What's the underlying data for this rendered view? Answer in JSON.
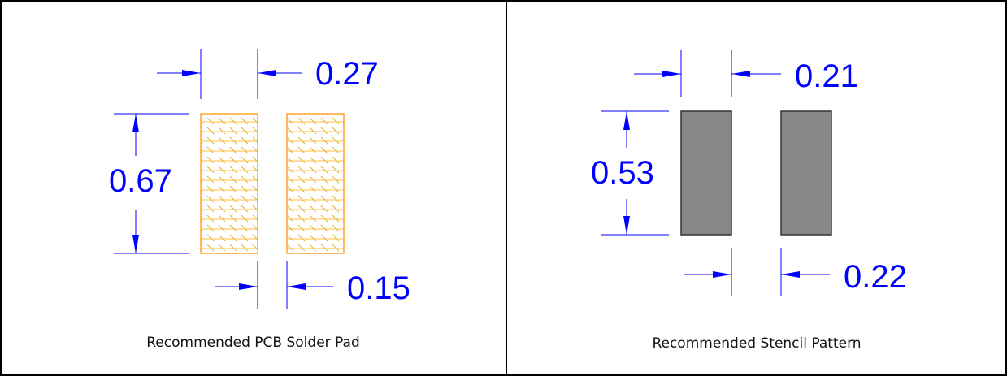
{
  "panels": {
    "pcb": {
      "caption": "Recommended PCB Solder Pad",
      "dim_top": "0.27",
      "dim_left": "0.67",
      "dim_bottom": "0.15",
      "pad_color": "#FFA32E",
      "hatch_color": "#FFC040"
    },
    "stencil": {
      "caption": "Recommended Stencil Pattern",
      "dim_top": "0.21",
      "dim_left": "0.53",
      "dim_bottom": "0.22",
      "pad_color": "#888888"
    }
  },
  "colors": {
    "dimension": "#0000FF",
    "border": "#000000"
  }
}
